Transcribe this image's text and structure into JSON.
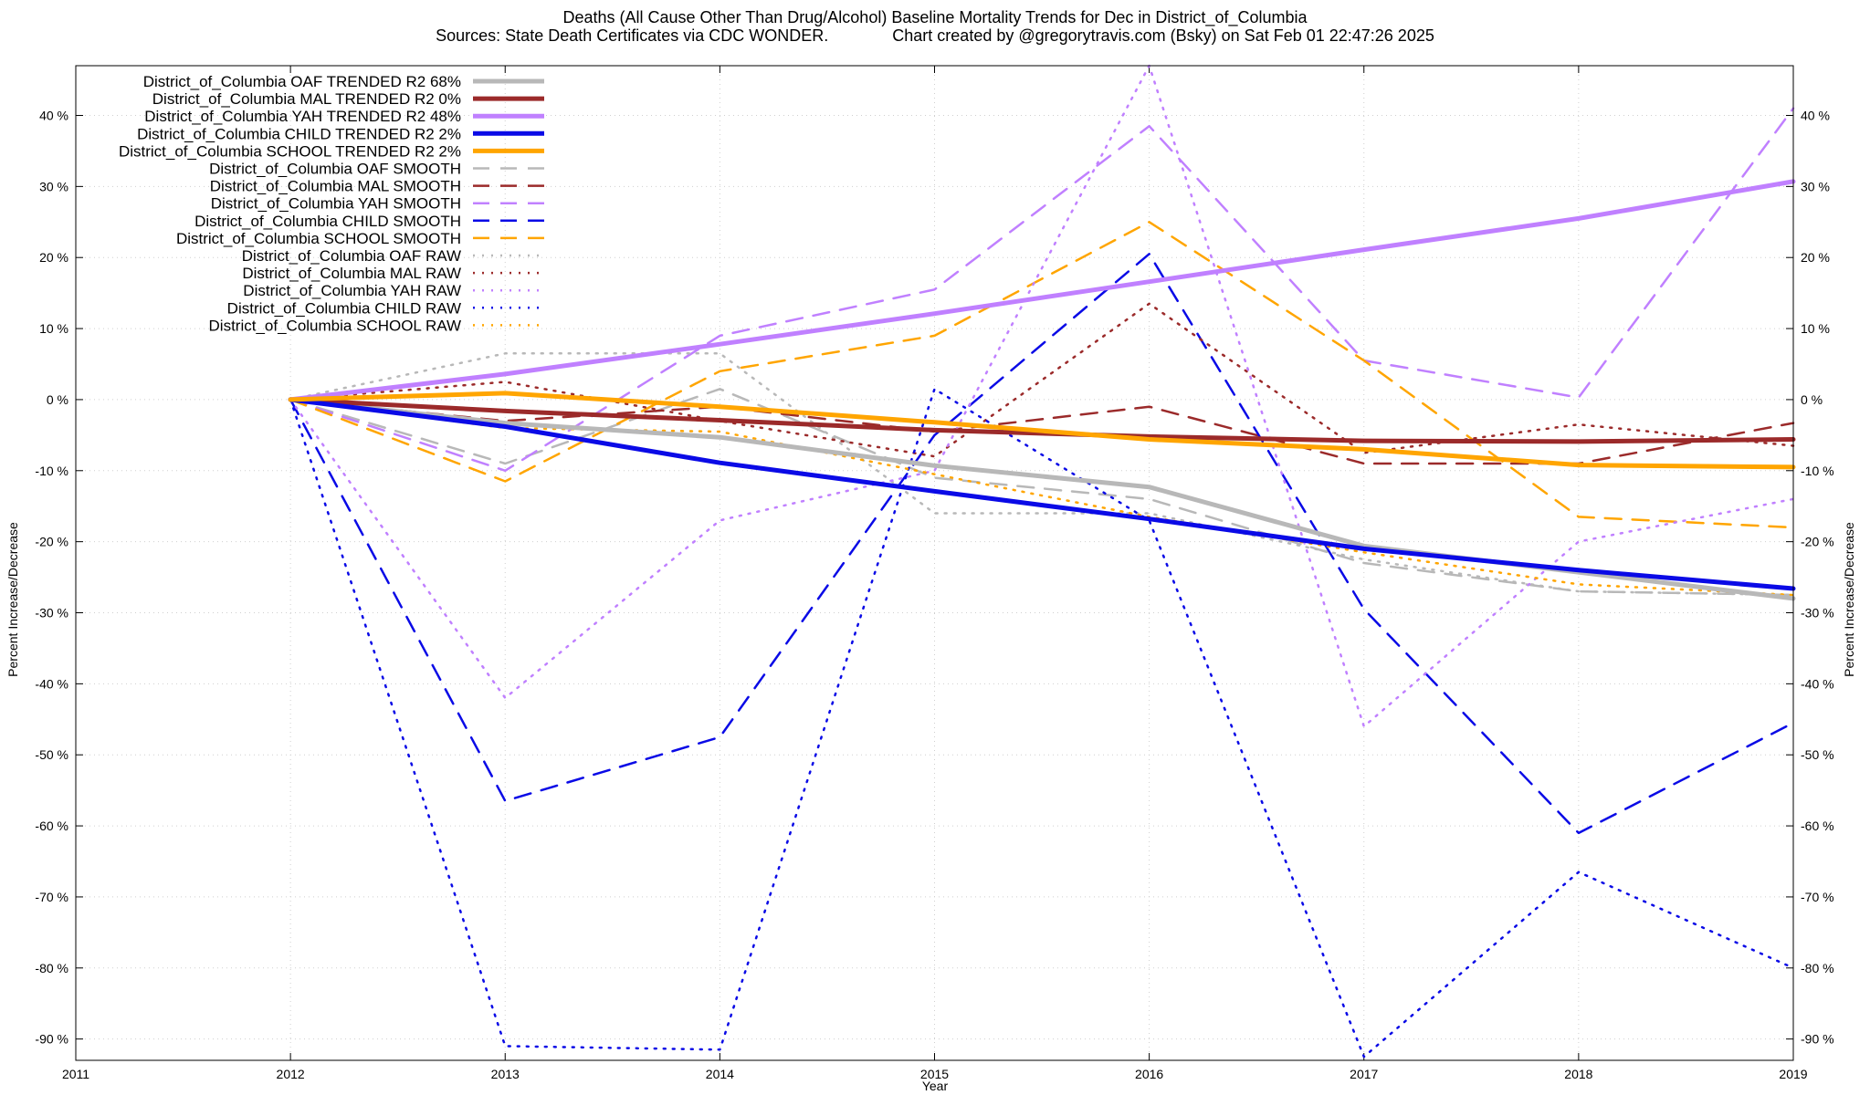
{
  "chart_data": {
    "type": "line",
    "title": "Deaths (All Cause Other Than Drug/Alcohol)  Baseline Mortality Trends for Dec in District_of_Columbia",
    "subtitle": "Sources: State Death Certificates via CDC WONDER.              Chart created by @gregorytravis.com (Bsky) on Sat Feb 01 22:47:26 2025",
    "xlabel": "Year",
    "ylabel": "Percent Increase/Decrease",
    "y2label": "Percent Increase/Decrease",
    "xlim": [
      2011,
      2019
    ],
    "ylim": [
      -93,
      47
    ],
    "x_ticks": [
      "2011",
      "2012",
      "2013",
      "2014",
      "2015",
      "2016",
      "2017",
      "2018",
      "2019"
    ],
    "y_ticks": [
      40,
      30,
      20,
      10,
      0,
      -10,
      -20,
      -30,
      -40,
      -50,
      -60,
      -70,
      -80,
      -90
    ],
    "y_tick_labels": [
      "40 %",
      "30 %",
      "20 %",
      "10 %",
      "0 %",
      "-10 %",
      "-20 %",
      "-30 %",
      "-40 %",
      "-50 %",
      "-60 %",
      "-70 %",
      "-80 %",
      "-90 %"
    ],
    "grid": true,
    "legend_position": "top-left",
    "x": [
      2012,
      2013,
      2014,
      2015,
      2016,
      2017,
      2018,
      2019
    ],
    "series": [
      {
        "name": "District_of_Columbia OAF TRENDED R2  68%",
        "style": "trend",
        "color": "#b8b8b8",
        "values": [
          0,
          -3.3,
          -5.3,
          -9.3,
          -12.3,
          -20.6,
          -24.3,
          -28
        ]
      },
      {
        "name": "District_of_Columbia MAL TRENDED R2   0%",
        "style": "trend",
        "color": "#9b2a2a",
        "values": [
          0,
          -1.6,
          -2.9,
          -4.3,
          -5.2,
          -5.8,
          -5.9,
          -5.6
        ]
      },
      {
        "name": "District_of_Columbia YAH TRENDED R2  48%",
        "style": "trend",
        "color": "#c080ff",
        "values": [
          0,
          3.6,
          7.8,
          12.1,
          16.6,
          21.1,
          25.5,
          30.7
        ]
      },
      {
        "name": "District_of_Columbia CHILD TRENDED R2   2%",
        "style": "trend",
        "color": "#0a0ae6",
        "values": [
          0,
          -3.8,
          -8.9,
          -12.9,
          -16.8,
          -21.0,
          -24.0,
          -26.6
        ]
      },
      {
        "name": "District_of_Columbia SCHOOL TRENDED R2   2%",
        "style": "trend",
        "color": "#ffa500",
        "values": [
          0,
          0.9,
          -1.0,
          -3.2,
          -5.6,
          -7.0,
          -9.2,
          -9.5
        ]
      },
      {
        "name": "District_of_Columbia OAF SMOOTH",
        "style": "smooth",
        "color": "#b8b8b8",
        "values": [
          0,
          -9,
          1.5,
          -11,
          -14,
          -23,
          -27,
          -27.5
        ]
      },
      {
        "name": "District_of_Columbia MAL SMOOTH",
        "style": "smooth",
        "color": "#9b2a2a",
        "values": [
          0,
          -3,
          -1,
          -4.5,
          -1,
          -9,
          -9,
          -3.3
        ]
      },
      {
        "name": "District_of_Columbia YAH SMOOTH",
        "style": "smooth",
        "color": "#c080ff",
        "values": [
          0,
          -10,
          9,
          15.5,
          38.5,
          5.5,
          0.3,
          41
        ]
      },
      {
        "name": "District_of_Columbia CHILD SMOOTH",
        "style": "smooth",
        "color": "#0a0ae6",
        "values": [
          0,
          -56.5,
          -47.5,
          -5,
          20.5,
          -29.5,
          -61,
          -45.5
        ]
      },
      {
        "name": "District_of_Columbia SCHOOL SMOOTH",
        "style": "smooth",
        "color": "#ffa500",
        "values": [
          0,
          -11.5,
          4,
          9,
          25,
          5.5,
          -16.5,
          -18
        ]
      },
      {
        "name": "District_of_Columbia OAF RAW",
        "style": "raw",
        "color": "#b8b8b8",
        "values": [
          0,
          6.5,
          6.5,
          -16,
          -16,
          -22.5,
          -27,
          -27.5
        ]
      },
      {
        "name": "District_of_Columbia MAL RAW",
        "style": "raw",
        "color": "#9b2a2a",
        "values": [
          0,
          2.5,
          -3,
          -8,
          13.5,
          -7.5,
          -3.5,
          -6.5
        ]
      },
      {
        "name": "District_of_Columbia YAH RAW",
        "style": "raw",
        "color": "#c080ff",
        "values": [
          0,
          -42,
          -17,
          -10,
          47,
          -46,
          -20,
          -14
        ]
      },
      {
        "name": "District_of_Columbia CHILD RAW",
        "style": "raw",
        "color": "#0a0ae6",
        "values": [
          0,
          -91,
          -91.5,
          1.5,
          -17,
          -92.5,
          -66.5,
          -80
        ]
      },
      {
        "name": "District_of_Columbia SCHOOL RAW",
        "style": "raw",
        "color": "#ffa500",
        "values": [
          0,
          -4,
          -4.5,
          -10.5,
          -16.5,
          -21.5,
          -26,
          -27.5
        ]
      }
    ]
  }
}
